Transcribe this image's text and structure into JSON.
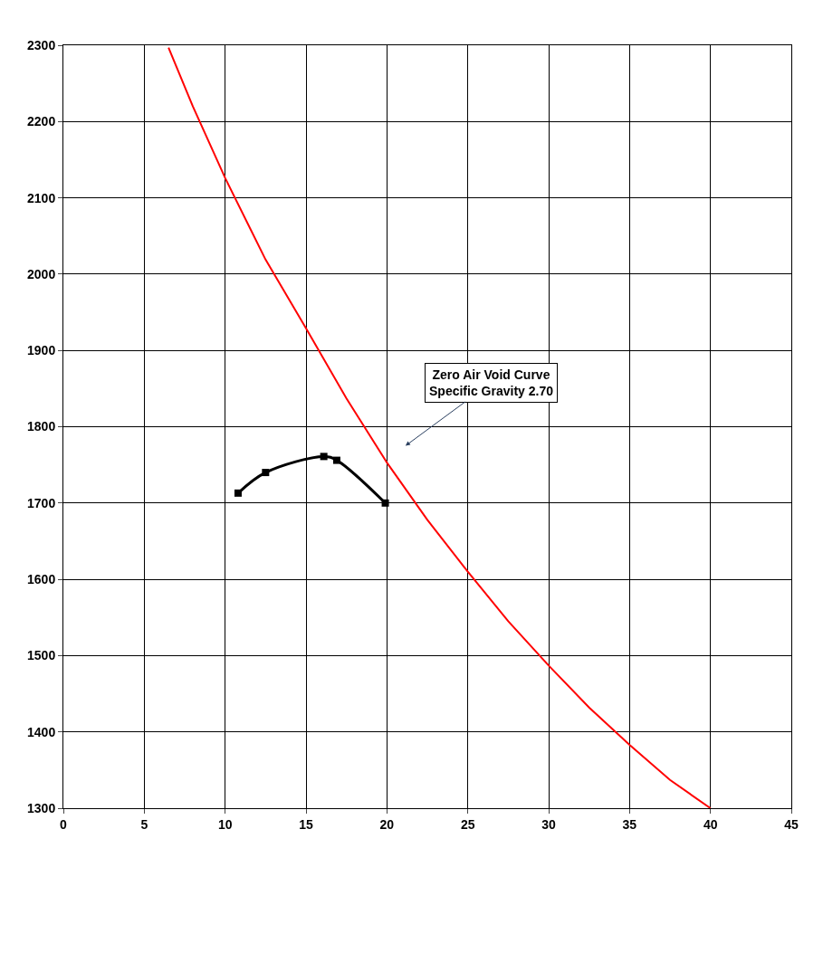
{
  "chart_data": {
    "type": "line",
    "xlim": [
      0,
      45
    ],
    "ylim": [
      1300,
      2300
    ],
    "xticks": [
      0,
      5,
      10,
      15,
      20,
      25,
      30,
      35,
      40,
      45
    ],
    "yticks": [
      1300,
      1400,
      1500,
      1600,
      1700,
      1800,
      1900,
      2000,
      2100,
      2200,
      2300
    ],
    "grid": true,
    "series": [
      {
        "color": "#ff0000",
        "marker": "none",
        "x": [
          6.5,
          8,
          10,
          12.5,
          15,
          17.5,
          20,
          22.5,
          25,
          27.5,
          30,
          32.5,
          35,
          37.5,
          40
        ],
        "values": [
          2297,
          2220,
          2126,
          2019,
          1929,
          1837,
          1753,
          1678,
          1610,
          1545,
          1487,
          1432,
          1383,
          1337,
          1300
        ]
      },
      {
        "color": "#000000",
        "marker": "square",
        "x": [
          10.8,
          12.5,
          16.1,
          16.9,
          19.9
        ],
        "values": [
          1713,
          1740,
          1761,
          1756,
          1700
        ]
      }
    ],
    "annotations": [
      "Zero Air Void Curve\nSpecific Gravity 2.70"
    ]
  }
}
